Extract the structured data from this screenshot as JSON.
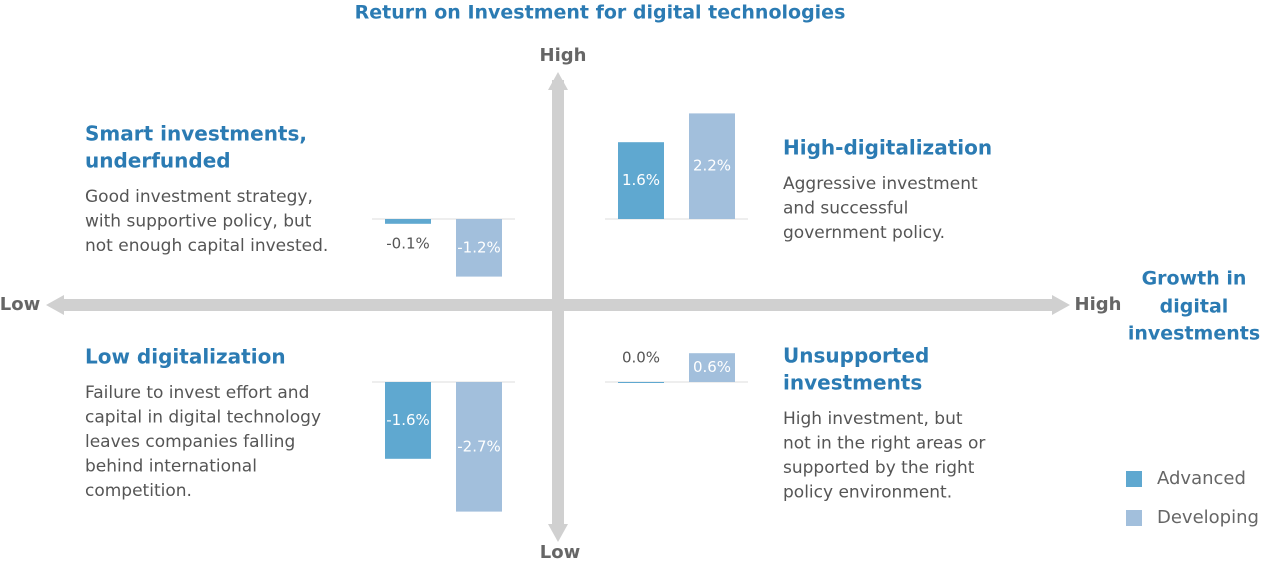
{
  "title": "Return on Investment for digital technologies",
  "y_axis": {
    "high": "High",
    "low": "Low"
  },
  "x_axis": {
    "low": "Low",
    "high": "High",
    "label": [
      "Growth in",
      "digital",
      "investments"
    ]
  },
  "chart_data": [
    {
      "type": "bar",
      "title": [
        "Smart investments,",
        "underfunded"
      ],
      "description": [
        "Good investment strategy,",
        "with supportive policy, but",
        "not enough capital invested."
      ],
      "series": [
        {
          "name": "Advanced",
          "color": "#5fa8d0",
          "values": [
            -0.1
          ],
          "value_labels": [
            "-0.1%"
          ]
        },
        {
          "name": "Developing",
          "color": "#a2bfdc",
          "values": [
            -1.2
          ],
          "value_labels": [
            "-1.2%"
          ]
        }
      ]
    },
    {
      "type": "bar",
      "title": [
        "High-digitalization"
      ],
      "description": [
        "Aggressive investment",
        "and successful",
        "government policy."
      ],
      "series": [
        {
          "name": "Advanced",
          "color": "#5fa8d0",
          "values": [
            1.6
          ],
          "value_labels": [
            "1.6%"
          ]
        },
        {
          "name": "Developing",
          "color": "#a2bfdc",
          "values": [
            2.2
          ],
          "value_labels": [
            "2.2%"
          ]
        }
      ]
    },
    {
      "type": "bar",
      "title": [
        "Low digitalization"
      ],
      "description": [
        "Failure to invest effort and",
        "capital in digital technology",
        "leaves companies falling",
        "behind international",
        "competition."
      ],
      "series": [
        {
          "name": "Advanced",
          "color": "#5fa8d0",
          "values": [
            -1.6
          ],
          "value_labels": [
            "-1.6%"
          ]
        },
        {
          "name": "Developing",
          "color": "#a2bfdc",
          "values": [
            -2.7
          ],
          "value_labels": [
            "-2.7%"
          ]
        }
      ]
    },
    {
      "type": "bar",
      "title": [
        "Unsupported",
        "investments"
      ],
      "description": [
        "High investment, but",
        "not in the right areas or",
        "supported by the right",
        "policy environment."
      ],
      "series": [
        {
          "name": "Advanced",
          "color": "#5fa8d0",
          "values": [
            0.0
          ],
          "value_labels": [
            "0.0%"
          ]
        },
        {
          "name": "Developing",
          "color": "#a2bfdc",
          "values": [
            0.6
          ],
          "value_labels": [
            "0.6%"
          ]
        }
      ]
    }
  ]
}
